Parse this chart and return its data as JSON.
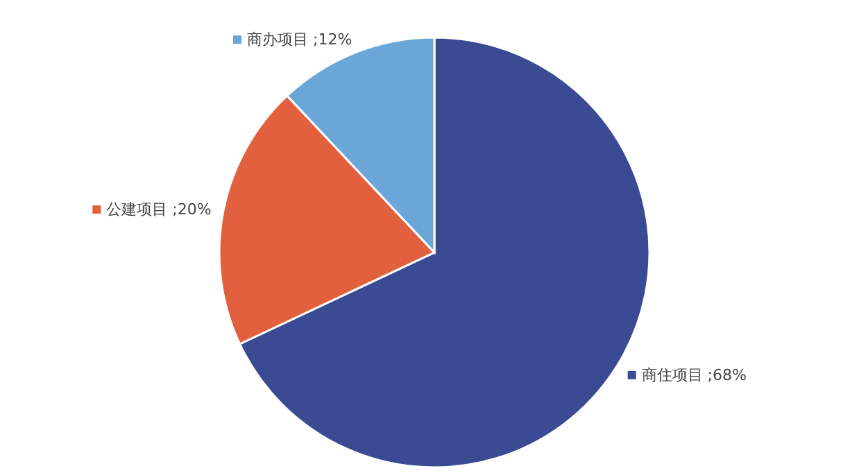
{
  "chart_data": {
    "type": "pie",
    "categories": [
      "商住项目",
      "公建项目",
      "商办项目"
    ],
    "values": [
      68,
      20,
      12
    ],
    "colors": [
      "#3b4b93",
      "#e3603e",
      "#6aa6d8"
    ],
    "value_labels": [
      "68%",
      "20%",
      "12%"
    ],
    "legend": "left"
  }
}
